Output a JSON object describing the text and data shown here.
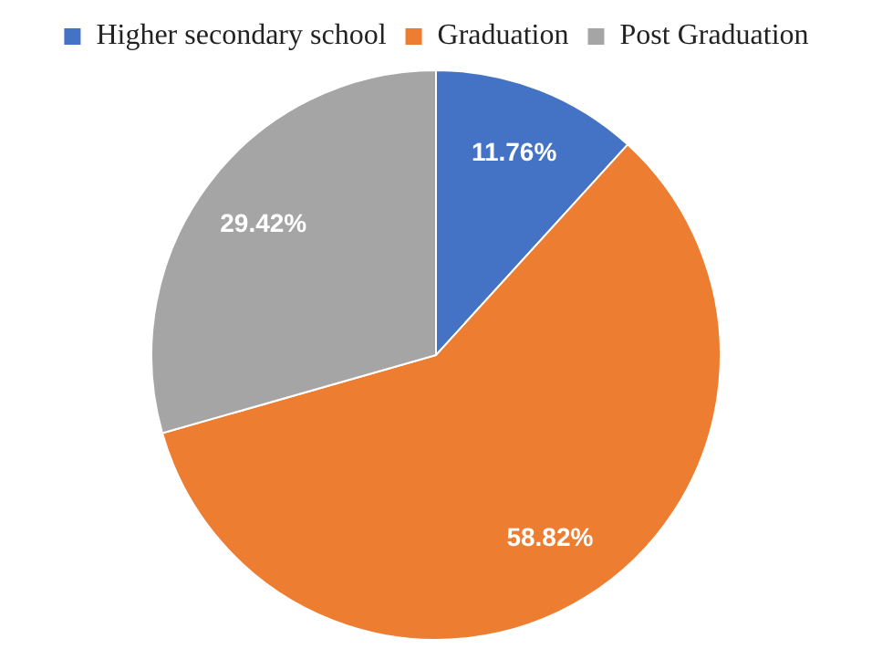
{
  "chart_data": {
    "type": "pie",
    "categories": [
      "Higher secondary school",
      "Graduation",
      "Post Graduation"
    ],
    "values": [
      11.76,
      58.82,
      29.42
    ],
    "colors": [
      "#4472c4",
      "#ed7d31",
      "#a5a5a5"
    ],
    "value_labels": [
      "11.76%",
      "58.82%",
      "29.42%"
    ],
    "legend": "top"
  }
}
